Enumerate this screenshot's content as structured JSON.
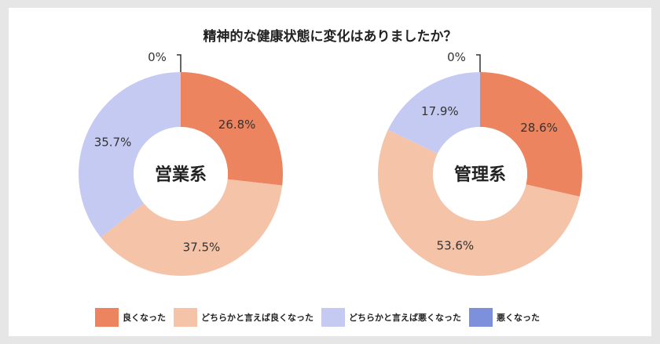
{
  "title": "精神的な健康状態に変化はありましたか？",
  "legend": [
    {
      "label": "良くなった",
      "color": "#ec855f"
    },
    {
      "label": "どちらかと言えば良くなった",
      "color": "#f5c3a8"
    },
    {
      "label": "どちらかと言えば悪くなった",
      "color": "#c5caf2"
    },
    {
      "label": "悪くなった",
      "color": "#7d90dc"
    }
  ],
  "chart_data": [
    {
      "type": "donut",
      "center_label": "営業系",
      "categories": [
        "良くなった",
        "どちらかと言えば良くなった",
        "どちらかと言えば悪くなった",
        "悪くなった"
      ],
      "values": [
        26.8,
        37.5,
        35.7,
        0
      ],
      "labels": [
        "26.8%",
        "37.5%",
        "35.7%",
        "0%"
      ]
    },
    {
      "type": "donut",
      "center_label": "管理系",
      "categories": [
        "良くなった",
        "どちらかと言えば良くなった",
        "どちらかと言えば悪くなった",
        "悪くなった"
      ],
      "values": [
        28.6,
        53.6,
        17.9,
        0
      ],
      "labels": [
        "28.6%",
        "53.6%",
        "17.9%",
        "0%"
      ]
    }
  ]
}
